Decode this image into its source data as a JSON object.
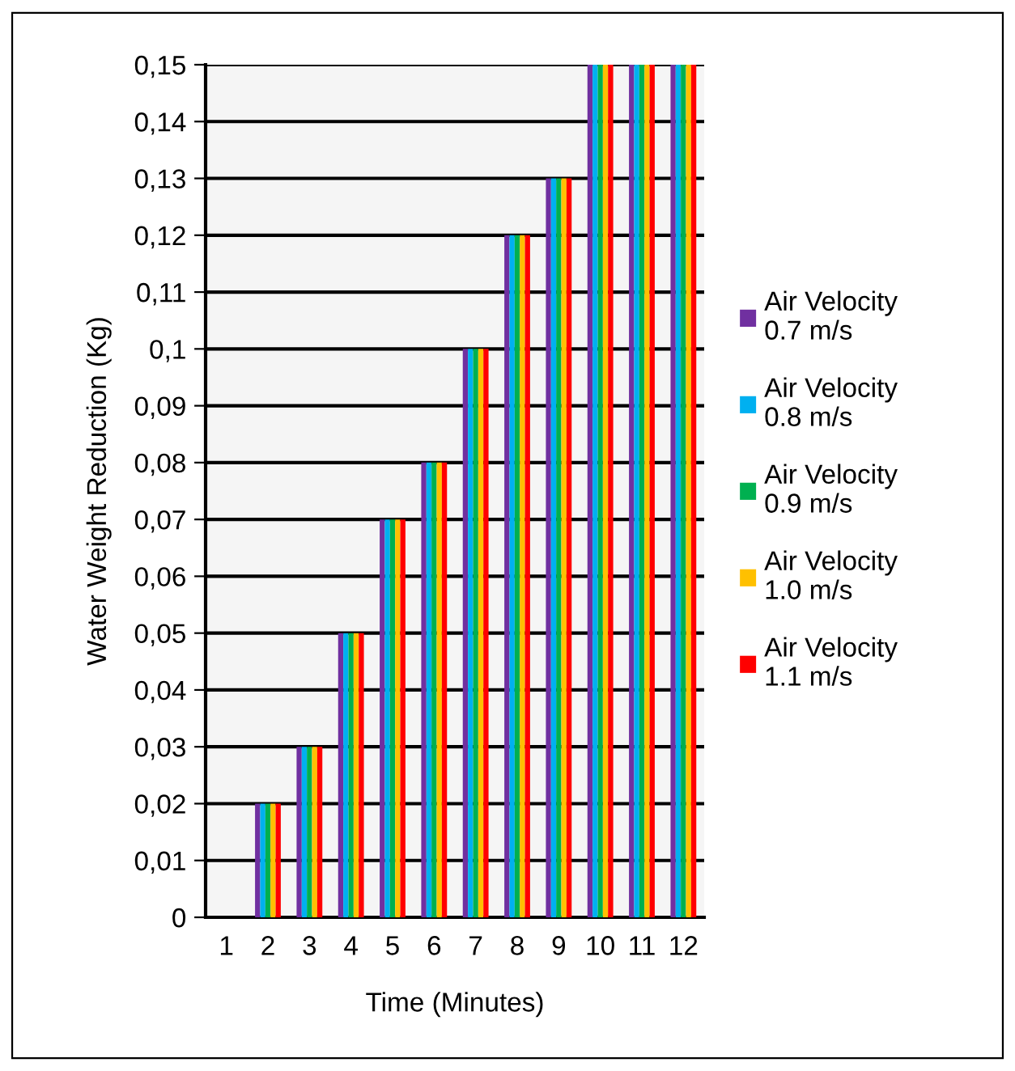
{
  "chart_data": {
    "type": "bar",
    "xlabel": "Time (Minutes)",
    "ylabel": "Water Weight Reduction (Kg)",
    "categories": [
      "1",
      "2",
      "3",
      "4",
      "5",
      "6",
      "7",
      "8",
      "9",
      "10",
      "11",
      "12"
    ],
    "series": [
      {
        "name": "Air Velocity 0.7 m/s",
        "color": "#7030a0",
        "values": [
          0,
          0.02,
          0.03,
          0.05,
          0.07,
          0.08,
          0.1,
          0.12,
          0.13,
          0.15,
          0.15,
          0.15
        ]
      },
      {
        "name": "Air Velocity 0.8 m/s",
        "color": "#00b0f0",
        "values": [
          0,
          0.02,
          0.03,
          0.05,
          0.07,
          0.08,
          0.1,
          0.12,
          0.13,
          0.15,
          0.15,
          0.15
        ]
      },
      {
        "name": "Air Velocity 0.9 m/s",
        "color": "#00b050",
        "values": [
          0,
          0.02,
          0.03,
          0.05,
          0.07,
          0.08,
          0.1,
          0.12,
          0.13,
          0.15,
          0.15,
          0.15
        ]
      },
      {
        "name": "Air Velocity 1.0 m/s",
        "color": "#ffc000",
        "values": [
          0,
          0.02,
          0.03,
          0.05,
          0.07,
          0.08,
          0.1,
          0.12,
          0.13,
          0.15,
          0.15,
          0.15
        ]
      },
      {
        "name": "Air Velocity 1.1 m/s",
        "color": "#ff0000",
        "values": [
          0,
          0.02,
          0.03,
          0.05,
          0.07,
          0.08,
          0.1,
          0.12,
          0.13,
          0.15,
          0.15,
          0.15
        ]
      }
    ],
    "ylim": [
      0,
      0.15
    ],
    "yticks": [
      0,
      {
        "value": 0.01,
        "label": "0,01"
      },
      {
        "value": 0.02,
        "label": "0,02"
      },
      {
        "value": 0.03,
        "label": "0,03"
      },
      {
        "value": 0.04,
        "label": "0,04"
      },
      {
        "value": 0.05,
        "label": "0,05"
      },
      {
        "value": 0.06,
        "label": "0,06"
      },
      {
        "value": 0.07,
        "label": "0,07"
      },
      {
        "value": 0.08,
        "label": "0,08"
      },
      {
        "value": 0.09,
        "label": "0,09"
      },
      {
        "value": 0.1,
        "label": "0,1"
      },
      {
        "value": 0.11,
        "label": "0,11"
      },
      {
        "value": 0.12,
        "label": "0,12"
      },
      {
        "value": 0.13,
        "label": "0,13"
      },
      {
        "value": 0.14,
        "label": "0,14"
      },
      {
        "value": 0.15,
        "label": "0,15"
      }
    ],
    "grid": "y",
    "legend": "right"
  }
}
